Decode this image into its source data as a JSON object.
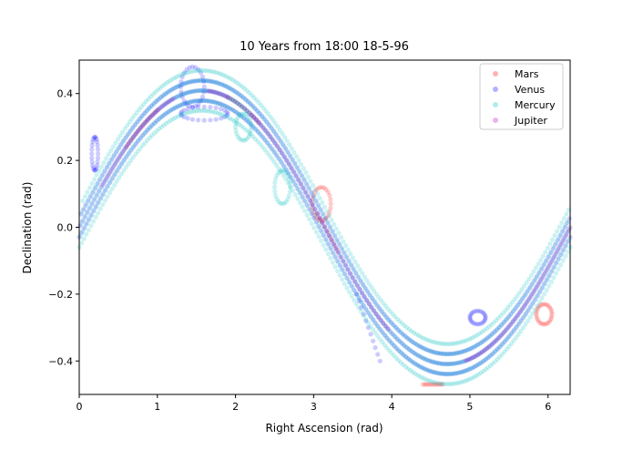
{
  "chart_data": {
    "type": "scatter",
    "title": "10 Years from  18:00 18-5-96",
    "xlabel": "Right Ascension (rad)",
    "ylabel": "Declination (rad)",
    "xlim": [
      0,
      6.283
    ],
    "ylim": [
      -0.5,
      0.5
    ],
    "xticks": [
      0,
      1,
      2,
      3,
      4,
      5,
      6
    ],
    "yticks": [
      -0.4,
      -0.2,
      0.0,
      0.2,
      0.4
    ],
    "ytick_labels": [
      "−0.4",
      "−0.2",
      "0.0",
      "0.2",
      "0.4"
    ],
    "grid": false,
    "legend_position": "top-right",
    "obliquity": 0.409,
    "series": [
      {
        "name": "Mars",
        "color": "#ff0000",
        "alpha": 0.2,
        "ecliptic_ra_ranges": [
          [
            0.6,
            1.0
          ],
          [
            1.9,
            2.3
          ],
          [
            3.05,
            3.3
          ]
        ],
        "loops": [
          {
            "center": [
              3.1,
              0.07
            ],
            "rx": 0.12,
            "ry": 0.05
          },
          {
            "center": [
              5.95,
              -0.26
            ],
            "rx": 0.1,
            "ry": 0.03
          }
        ],
        "segments": [
          {
            "x": [
              4.4,
              4.65
            ],
            "y": [
              -0.47,
              -0.47
            ]
          }
        ]
      },
      {
        "name": "Venus",
        "color": "#0000ff",
        "alpha": 0.2,
        "ecliptic_ra_ranges": [
          [
            0.0,
            6.283
          ]
        ],
        "band_offsets": [
          -0.03,
          0.0,
          0.03
        ],
        "loops": [
          {
            "center": [
              1.45,
              0.42
            ],
            "rx": 0.15,
            "ry": 0.06
          },
          {
            "center": [
              1.6,
              0.34
            ],
            "rx": 0.3,
            "ry": 0.02
          },
          {
            "center": [
              0.2,
              0.22
            ],
            "rx": 0.04,
            "ry": 0.05
          },
          {
            "center": [
              5.1,
              -0.27
            ],
            "rx": 0.1,
            "ry": 0.02
          }
        ],
        "segments": [
          {
            "x": [
              3.55,
              3.85
            ],
            "y": [
              -0.2,
              -0.4
            ]
          }
        ]
      },
      {
        "name": "Mercury",
        "color": "#00bcbc",
        "alpha": 0.2,
        "ecliptic_ra_ranges": [
          [
            0.0,
            6.283
          ]
        ],
        "band_offsets": [
          -0.06,
          -0.03,
          0.0,
          0.03,
          0.06
        ],
        "loops": [
          {
            "center": [
              2.6,
              0.12
            ],
            "rx": 0.1,
            "ry": 0.05
          },
          {
            "center": [
              2.1,
              0.3
            ],
            "rx": 0.1,
            "ry": 0.04
          }
        ],
        "segments": []
      },
      {
        "name": "Jupiter",
        "color": "#bf00bf",
        "alpha": 0.2,
        "ecliptic_ra_ranges": [
          [
            0.3,
            1.2
          ],
          [
            1.65,
            1.9
          ],
          [
            2.2,
            3.95
          ],
          [
            4.95,
            6.283
          ]
        ],
        "loops": [],
        "segments": []
      }
    ]
  }
}
